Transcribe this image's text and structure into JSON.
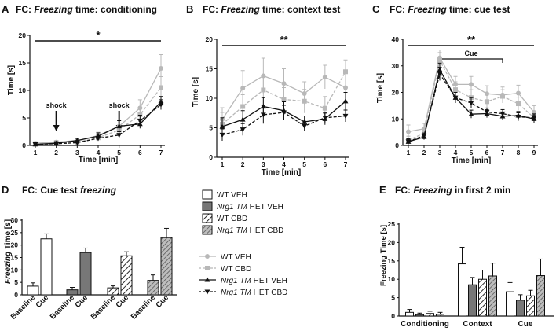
{
  "colors": {
    "wt_veh": "#b8b8b8",
    "wt_cbd": "#b8b8b8",
    "nrg1_veh": "#111111",
    "nrg1_cbd": "#111111",
    "bar_fill_gray": "#777777",
    "axis": "#111111"
  },
  "legend_bars": [
    {
      "pre": "WT VEH",
      "italic": "",
      "post": ""
    },
    {
      "pre": "",
      "italic": "Nrg1 TM",
      "post": " HET VEH"
    },
    {
      "pre": "WT CBD",
      "italic": "",
      "post": ""
    },
    {
      "pre": "",
      "italic": "Nrg1 TM",
      "post": " HET CBD"
    }
  ],
  "legend_lines": [
    {
      "pre": "WT VEH",
      "italic": "",
      "post": ""
    },
    {
      "pre": "WT CBD",
      "italic": "",
      "post": ""
    },
    {
      "pre": "",
      "italic": "Nrg1 TM",
      "post": " HET VEH"
    },
    {
      "pre": "",
      "italic": "Nrg1 TM",
      "post": " HET CBD"
    }
  ],
  "chart_data": [
    {
      "panel": "A",
      "type": "line",
      "title_pre": "FC: ",
      "title_italic": "Freezing",
      "title_post": " time: conditioning",
      "xlabel": "Time [min]",
      "ylabel": "Time [s]",
      "x": [
        1,
        2,
        3,
        4,
        5,
        6,
        7
      ],
      "xlim": [
        1,
        7
      ],
      "ylim": [
        0,
        20
      ],
      "yticks": [
        0,
        5,
        10,
        15,
        20
      ],
      "series": [
        {
          "name": "WT VEH",
          "values": [
            0.4,
            0.6,
            0.9,
            1.8,
            3.5,
            6.8,
            14.0
          ],
          "err": [
            0.3,
            0.3,
            0.4,
            0.6,
            1.0,
            1.5,
            2.5
          ]
        },
        {
          "name": "WT CBD",
          "values": [
            0.3,
            0.5,
            0.6,
            1.4,
            2.8,
            5.6,
            10.5
          ],
          "err": [
            0.2,
            0.3,
            0.3,
            0.5,
            0.8,
            1.2,
            2.0
          ]
        },
        {
          "name": "Nrg1 TM HET VEH",
          "values": [
            0.2,
            0.4,
            0.9,
            1.7,
            3.5,
            3.9,
            7.9
          ],
          "err": [
            0.2,
            0.3,
            0.4,
            0.6,
            1.0,
            0.8,
            1.0
          ]
        },
        {
          "name": "Nrg1 TM HET CBD",
          "values": [
            0.2,
            0.3,
            0.5,
            1.3,
            1.9,
            4.5,
            7.4
          ],
          "err": [
            0.2,
            0.2,
            0.3,
            0.4,
            0.6,
            1.0,
            0.9
          ]
        }
      ],
      "significance": "*",
      "annotations": [
        {
          "label": "shock",
          "x": 2
        },
        {
          "label": "shock",
          "x": 5
        }
      ]
    },
    {
      "panel": "B",
      "type": "line",
      "title_pre": "FC: ",
      "title_italic": "Freezing",
      "title_post": " time: context test",
      "xlabel": "Time [min]",
      "ylabel": "Time [s]",
      "x": [
        1,
        2,
        3,
        4,
        5,
        6,
        7
      ],
      "xlim": [
        1,
        7
      ],
      "ylim": [
        0,
        20
      ],
      "yticks": [
        0,
        5,
        10,
        15,
        20
      ],
      "series": [
        {
          "name": "WT VEH",
          "values": [
            6.4,
            11.7,
            13.8,
            12.5,
            10.8,
            13.6,
            11.8
          ],
          "err": [
            2.0,
            3.0,
            3.0,
            2.5,
            2.0,
            2.0,
            3.0
          ]
        },
        {
          "name": "WT CBD",
          "values": [
            5.6,
            8.6,
            11.4,
            9.8,
            9.5,
            8.3,
            14.5
          ],
          "err": [
            2.0,
            2.0,
            2.5,
            2.0,
            2.0,
            2.0,
            2.0
          ]
        },
        {
          "name": "Nrg1 TM HET VEH",
          "values": [
            5.2,
            6.4,
            8.6,
            7.9,
            6.0,
            6.5,
            9.5
          ],
          "err": [
            1.5,
            1.5,
            1.5,
            1.5,
            1.0,
            1.0,
            1.5
          ]
        },
        {
          "name": "Nrg1 TM HET CBD",
          "values": [
            3.8,
            4.7,
            7.2,
            7.6,
            5.3,
            6.7,
            7.0
          ],
          "err": [
            1.0,
            1.0,
            1.5,
            1.2,
            0.8,
            0.8,
            1.0
          ]
        }
      ],
      "significance": "**",
      "annotations": []
    },
    {
      "panel": "C",
      "type": "line",
      "title_pre": "FC: ",
      "title_italic": "Freezing",
      "title_post": " time: cue test",
      "xlabel": "Time [min]",
      "ylabel": "Time [s]",
      "x": [
        1,
        2,
        3,
        4,
        5,
        6,
        7,
        8,
        9
      ],
      "xlim": [
        1,
        9
      ],
      "ylim": [
        0,
        40
      ],
      "yticks": [
        0,
        10,
        20,
        30,
        40
      ],
      "series": [
        {
          "name": "WT VEH",
          "values": [
            5.2,
            6.3,
            33.0,
            23.0,
            23.0,
            19.5,
            19.0,
            19.7,
            12.5
          ],
          "err": [
            2.5,
            2.0,
            3.0,
            3.0,
            3.0,
            3.0,
            3.0,
            3.0,
            2.5
          ]
        },
        {
          "name": "WT CBD",
          "values": [
            2.0,
            4.6,
            32.0,
            21.0,
            18.0,
            16.5,
            18.5,
            15.7,
            10.5
          ],
          "err": [
            1.5,
            1.5,
            3.0,
            3.0,
            3.0,
            2.5,
            2.5,
            2.5,
            2.0
          ]
        },
        {
          "name": "Nrg1 TM HET VEH",
          "values": [
            1.4,
            3.2,
            28.5,
            18.0,
            11.8,
            12.0,
            11.0,
            11.3,
            10.0
          ],
          "err": [
            1.0,
            1.0,
            2.5,
            2.0,
            1.5,
            1.5,
            1.5,
            1.5,
            1.5
          ]
        },
        {
          "name": "Nrg1 TM HET CBD",
          "values": [
            1.5,
            3.7,
            27.0,
            18.0,
            16.0,
            12.6,
            12.0,
            10.8,
            10.4
          ],
          "err": [
            1.0,
            1.0,
            2.5,
            2.0,
            2.0,
            1.5,
            1.5,
            1.5,
            1.5
          ]
        }
      ],
      "significance": "**",
      "cue_label": "Cue",
      "cue_range": [
        3,
        7
      ],
      "annotations": []
    },
    {
      "panel": "D",
      "type": "bar",
      "title_pre": "FC: Cue test ",
      "title_italic": "freezing",
      "title_post": "",
      "ylabel_italic": "Freezing",
      "ylabel_post": " Time [s]",
      "ylim": [
        0,
        30
      ],
      "yticks": [
        0,
        5,
        10,
        15,
        20,
        25,
        30
      ],
      "groups": [
        "WT VEH",
        "Nrg1 TM HET VEH",
        "WT CBD",
        "Nrg1 TM HET CBD"
      ],
      "categories": [
        "Baseline",
        "Cue"
      ],
      "values": [
        [
          3.5,
          22.5
        ],
        [
          2.0,
          17.0
        ],
        [
          2.8,
          15.7
        ],
        [
          5.8,
          23.0
        ]
      ],
      "err": [
        [
          1.3,
          2.0
        ],
        [
          1.0,
          1.8
        ],
        [
          0.8,
          1.6
        ],
        [
          2.2,
          3.7
        ]
      ]
    },
    {
      "panel": "E",
      "type": "bar",
      "title_pre": "FC: ",
      "title_italic": "Freezing",
      "title_post": " in first 2 min",
      "ylabel": "Freezing Time [s]",
      "ylim": [
        0,
        25
      ],
      "yticks": [
        0,
        5,
        10,
        15,
        20,
        25
      ],
      "categories": [
        "Conditioning",
        "Context",
        "Cue"
      ],
      "groups": [
        "WT VEH",
        "Nrg1 TM HET VEH",
        "WT CBD",
        "Nrg1 TM HET CBD"
      ],
      "values": [
        [
          1.0,
          0.4,
          0.7,
          0.5
        ],
        [
          14.2,
          8.5,
          10.0,
          10.9
        ],
        [
          6.6,
          4.3,
          5.5,
          11.0
        ]
      ],
      "err": [
        [
          0.8,
          0.4,
          0.6,
          0.5
        ],
        [
          4.5,
          2.0,
          2.5,
          3.5
        ],
        [
          2.5,
          1.5,
          1.5,
          4.5
        ]
      ]
    }
  ]
}
